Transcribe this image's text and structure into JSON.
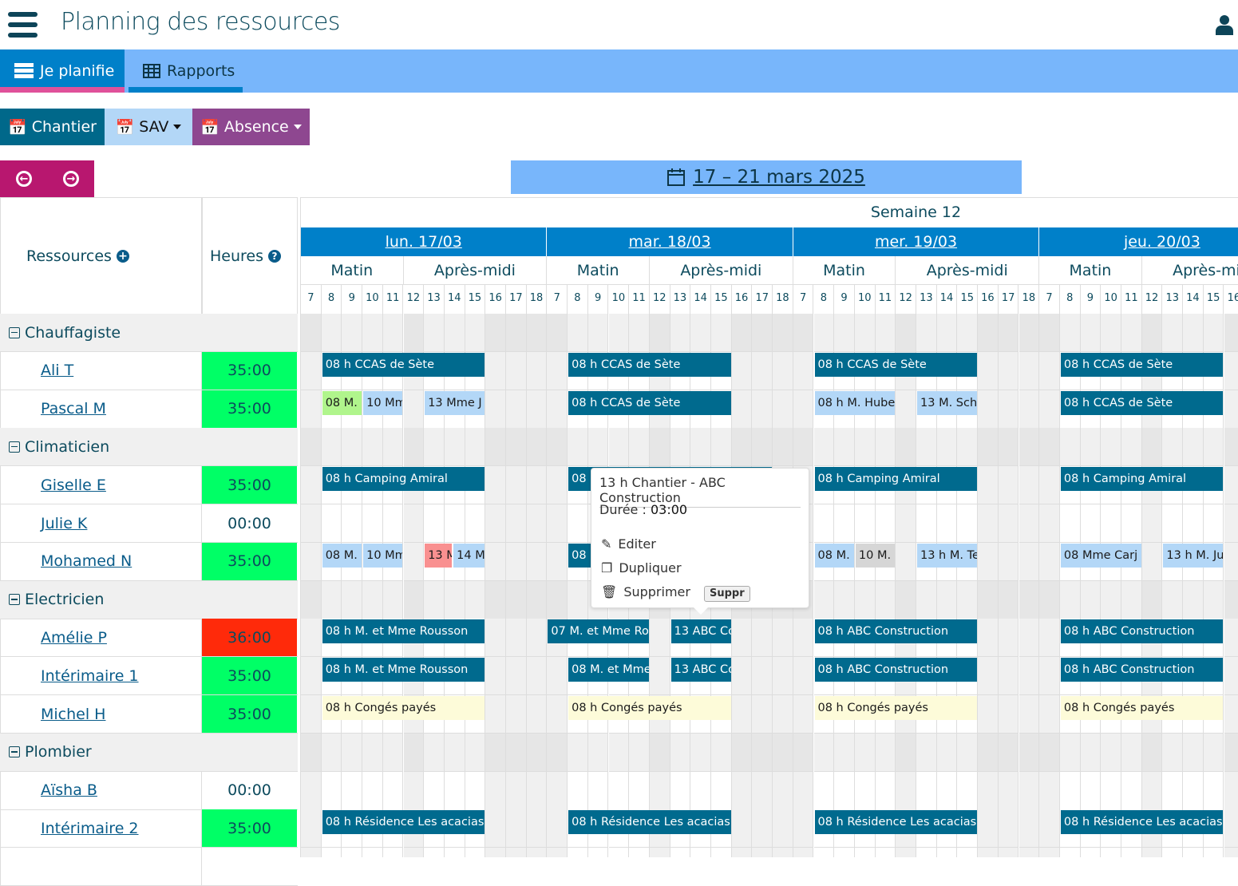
{
  "header": {
    "title": "Planning des ressources",
    "menu_icon": "hamburger-icon",
    "user_icon": "user-icon"
  },
  "nav": {
    "tabs": [
      {
        "label": "Je planifie",
        "icon": "server-icon",
        "active": true
      },
      {
        "label": "Rapports",
        "icon": "table-icon",
        "active": false
      }
    ]
  },
  "toolbar": {
    "chantier": "Chantier",
    "sav": "SAV",
    "absence": "Absence"
  },
  "date_range": "17 – 21 mars 2025",
  "columns": {
    "resources": "Ressources",
    "hours": "Heures"
  },
  "week_label": "Semaine 12",
  "days": [
    {
      "label": "lun. 17/03"
    },
    {
      "label": "mar. 18/03"
    },
    {
      "label": "mer. 19/03"
    },
    {
      "label": "jeu. 20/03"
    }
  ],
  "half_days": [
    "Matin",
    "Après-midi"
  ],
  "hours": [
    "7",
    "8",
    "9",
    "10",
    "11",
    "12",
    "13",
    "14",
    "15",
    "16",
    "17",
    "18"
  ],
  "colors": {
    "chantier": "#006a8e",
    "sav": "#b3d7f7",
    "sav_done": "#b0f58c",
    "sav_late": "#f99090",
    "sav_other": "#d6d6d6",
    "absence": "#fdfbd9",
    "hours_ok": "#00ff66",
    "hours_over": "#ff2a0a"
  },
  "rows": [
    {
      "type": "group",
      "label": "Chauffagiste"
    },
    {
      "type": "res",
      "name": "Ali T",
      "hours": "35:00",
      "status": "ok",
      "events": [
        [
          0,
          8,
          16,
          "chantier",
          "08 h",
          "CCAS de Sète"
        ],
        [
          1,
          8,
          16,
          "chantier",
          "08 h",
          "CCAS de Sète"
        ],
        [
          2,
          8,
          16,
          "chantier",
          "08 h",
          "CCAS de Sète"
        ],
        [
          3,
          8,
          16,
          "chantier",
          "08 h",
          "CCAS de Sète"
        ]
      ]
    },
    {
      "type": "res",
      "name": "Pascal M",
      "hours": "35:00",
      "status": "ok",
      "events": [
        [
          0,
          8,
          10,
          "sav_done",
          "08",
          "M. F"
        ],
        [
          0,
          10,
          12,
          "sav",
          "10",
          "Mme"
        ],
        [
          0,
          13,
          16,
          "sav",
          "13",
          "Mme J"
        ],
        [
          1,
          8,
          16,
          "chantier",
          "08 h",
          "CCAS de Sète"
        ],
        [
          2,
          8,
          12,
          "sav",
          "08 h",
          "M. Huber"
        ],
        [
          2,
          13,
          16,
          "sav",
          "13",
          "M. Schl"
        ],
        [
          3,
          8,
          16,
          "chantier",
          "08 h",
          "CCAS de Sète"
        ]
      ]
    },
    {
      "type": "group",
      "label": "Climaticien"
    },
    {
      "type": "res",
      "name": "Giselle E",
      "hours": "35:00",
      "status": "ok",
      "events": [
        [
          0,
          8,
          16,
          "chantier",
          "08 h",
          "Camping Amiral"
        ],
        [
          1,
          8,
          18,
          "chantier",
          "08",
          ""
        ],
        [
          2,
          8,
          16,
          "chantier",
          "08 h",
          "Camping Amiral"
        ],
        [
          3,
          8,
          16,
          "chantier",
          "08 h",
          "Camping Amiral"
        ]
      ]
    },
    {
      "type": "res",
      "name": "Julie K",
      "hours": "00:00",
      "status": "none",
      "events": []
    },
    {
      "type": "res",
      "name": "Mohamed N",
      "hours": "35:00",
      "status": "ok",
      "events": [
        [
          0,
          8,
          10,
          "sav",
          "08",
          "M. L"
        ],
        [
          0,
          10,
          12,
          "sav",
          "10",
          "Mme"
        ],
        [
          0,
          13,
          14.4,
          "sav_late",
          "13",
          "M."
        ],
        [
          0,
          14.4,
          16,
          "sav",
          "14",
          "M."
        ],
        [
          1,
          8,
          10,
          "chantier",
          "08",
          ""
        ],
        [
          2,
          8,
          10,
          "sav",
          "08",
          "M. B"
        ],
        [
          2,
          10,
          12,
          "sav_other",
          "10",
          "M. L"
        ],
        [
          2,
          13,
          16,
          "sav",
          "13 h",
          "M. Terr"
        ],
        [
          3,
          8,
          12,
          "sav",
          "08",
          "Mme Carj"
        ],
        [
          3,
          13,
          16,
          "sav",
          "13 h",
          "M. Jun"
        ]
      ]
    },
    {
      "type": "group",
      "label": "Electricien"
    },
    {
      "type": "res",
      "name": "Amélie P",
      "hours": "36:00",
      "status": "over",
      "events": [
        [
          0,
          8,
          16,
          "chantier",
          "08 h",
          "M. et Mme Rousson"
        ],
        [
          1,
          7,
          12,
          "chantier",
          "07",
          "M. et Mme Ro"
        ],
        [
          1,
          13,
          16,
          "chantier",
          "13",
          "ABC Co"
        ],
        [
          2,
          8,
          16,
          "chantier",
          "08 h",
          "ABC Construction"
        ],
        [
          3,
          8,
          16,
          "chantier",
          "08 h",
          "ABC Construction"
        ]
      ]
    },
    {
      "type": "res",
      "name": "Intérimaire 1",
      "hours": "35:00",
      "status": "ok",
      "events": [
        [
          0,
          8,
          16,
          "chantier",
          "08 h",
          "M. et Mme Rousson"
        ],
        [
          1,
          8,
          12,
          "chantier",
          "08",
          "M. et Mme"
        ],
        [
          1,
          13,
          16,
          "chantier",
          "13",
          "ABC Co"
        ],
        [
          2,
          8,
          16,
          "chantier",
          "08 h",
          "ABC Construction"
        ],
        [
          3,
          8,
          16,
          "chantier",
          "08 h",
          "ABC Construction"
        ]
      ]
    },
    {
      "type": "res",
      "name": "Michel H",
      "hours": "35:00",
      "status": "ok",
      "events": [
        [
          0,
          8,
          16,
          "absence",
          "08 h",
          "Congés payés"
        ],
        [
          1,
          8,
          16,
          "absence",
          "08 h",
          "Congés payés"
        ],
        [
          2,
          8,
          16,
          "absence",
          "08 h",
          "Congés payés"
        ],
        [
          3,
          8,
          16,
          "absence",
          "08 h",
          "Congés payés"
        ]
      ]
    },
    {
      "type": "group",
      "label": "Plombier"
    },
    {
      "type": "res",
      "name": "Aïsha B",
      "hours": "00:00",
      "status": "none",
      "events": []
    },
    {
      "type": "res",
      "name": "Intérimaire 2",
      "hours": "35:00",
      "status": "ok",
      "events": [
        [
          0,
          8,
          16,
          "chantier",
          "08 h",
          "Résidence Les acacias"
        ],
        [
          1,
          8,
          16,
          "chantier",
          "08 h",
          "Résidence Les acacias"
        ],
        [
          2,
          8,
          16,
          "chantier",
          "08 h",
          "Résidence Les acacias"
        ],
        [
          3,
          8,
          16,
          "chantier",
          "08 h",
          "Résidence Les acacias"
        ]
      ]
    },
    {
      "type": "res",
      "name": "",
      "hours": "",
      "status": "none",
      "events": []
    }
  ],
  "tooltip": {
    "title": "13 h Chantier - ABC Construction",
    "duration_label": "Durée :",
    "duration": "03:00",
    "edit": "Editer",
    "duplicate": "Dupliquer",
    "delete": "Supprimer",
    "delete_key": "Suppr"
  }
}
